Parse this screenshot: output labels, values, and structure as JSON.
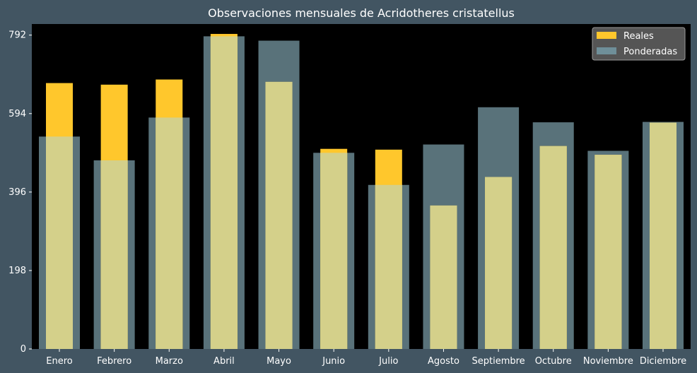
{
  "chart_data": {
    "type": "bar",
    "title": "Observaciones mensuales de Acridotheres cristatellus",
    "xlabel": "",
    "ylabel": "",
    "categories": [
      "Enero",
      "Febrero",
      "Marzo",
      "Abril",
      "Mayo",
      "Junio",
      "Julio",
      "Agosto",
      "Septiembre",
      "Octubre",
      "Noviembre",
      "Diciembre"
    ],
    "series": [
      {
        "name": "Reales",
        "values": [
          671,
          667,
          680,
          795,
          674,
          505,
          503,
          362,
          434,
          512,
          490,
          571
        ],
        "color": "#ffc72c"
      },
      {
        "name": "Ponderadas",
        "values": [
          536,
          476,
          584,
          789,
          778,
          495,
          414,
          516,
          610,
          572,
          500,
          573
        ],
        "color": "#6f8f99"
      }
    ],
    "ylim": [
      0,
      820
    ],
    "yticks": [
      0,
      198,
      396,
      594,
      792
    ],
    "grid": false,
    "legend_position": "top-right",
    "colors": {
      "page_background": "#425562",
      "plot_background": "#000000",
      "overlap_color": "#d4d08a"
    }
  }
}
